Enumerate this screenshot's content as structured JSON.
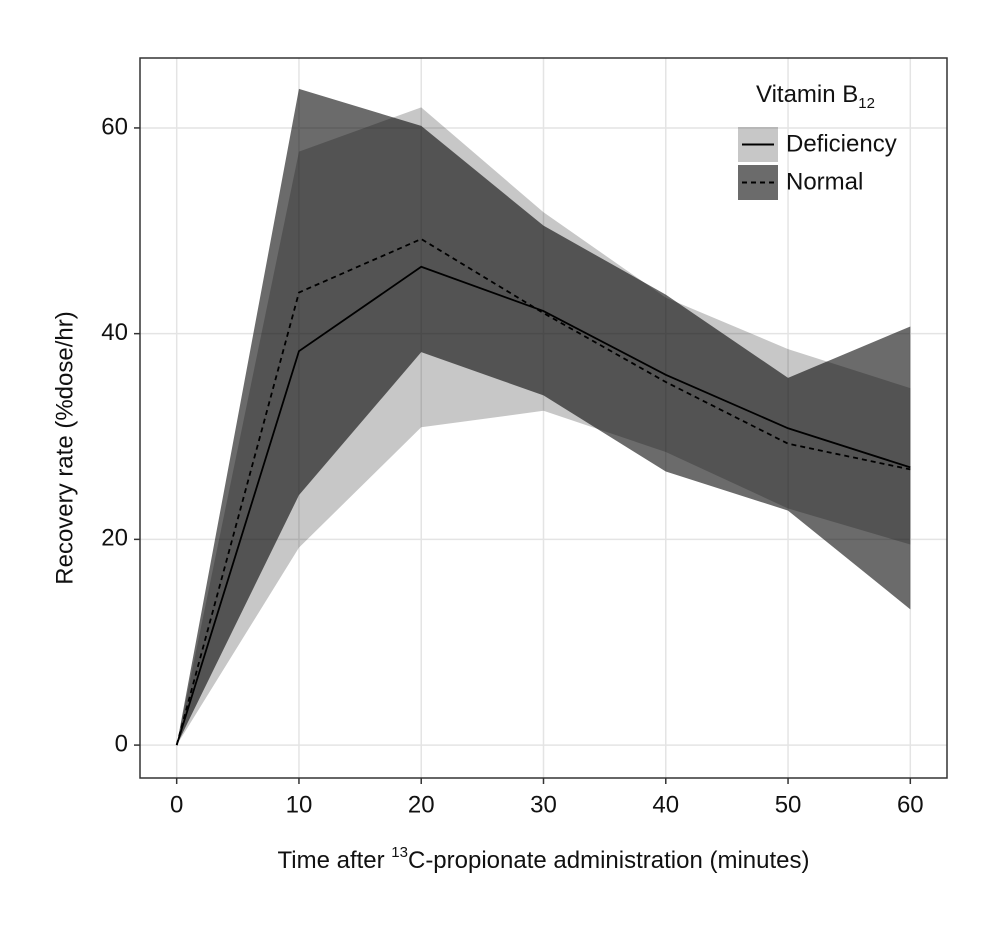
{
  "chart_data": {
    "type": "line",
    "x_label": [
      "Time after ",
      "13",
      "C-propionate administration (minutes)"
    ],
    "y_label": "Recovery rate (%dose/hr)",
    "legend_title": [
      "Vitamin B",
      "12"
    ],
    "legend_position": "top-right",
    "x": [
      0,
      10,
      20,
      30,
      40,
      50,
      60
    ],
    "series": [
      {
        "name": "Deficiency",
        "color": "#000000",
        "dash": "solid",
        "band_color": "#000000",
        "band_opacity": 0.22,
        "values": [
          0,
          38.3,
          46.5,
          42.2,
          36.0,
          30.8,
          27.0
        ],
        "lower": [
          0,
          19.2,
          30.9,
          32.5,
          28.5,
          23.0,
          19.5
        ],
        "upper": [
          0,
          57.7,
          62.0,
          51.8,
          43.5,
          38.5,
          34.7
        ]
      },
      {
        "name": "Normal",
        "color": "#000000",
        "dash": "dashed",
        "band_color": "#000000",
        "band_opacity": 0.58,
        "values": [
          0,
          44.0,
          49.2,
          42.0,
          35.3,
          29.3,
          26.8
        ],
        "lower": [
          0,
          24.3,
          38.2,
          34.0,
          26.6,
          22.8,
          13.2
        ],
        "upper": [
          0,
          63.8,
          60.2,
          50.5,
          43.8,
          35.7,
          40.7
        ]
      }
    ],
    "xlim": [
      -3,
      63
    ],
    "xticks": [
      0,
      10,
      20,
      30,
      40,
      50,
      60
    ],
    "ylim": [
      -3.2,
      66.8
    ],
    "yticks": [
      0,
      20,
      40,
      60
    ],
    "grid": true
  }
}
